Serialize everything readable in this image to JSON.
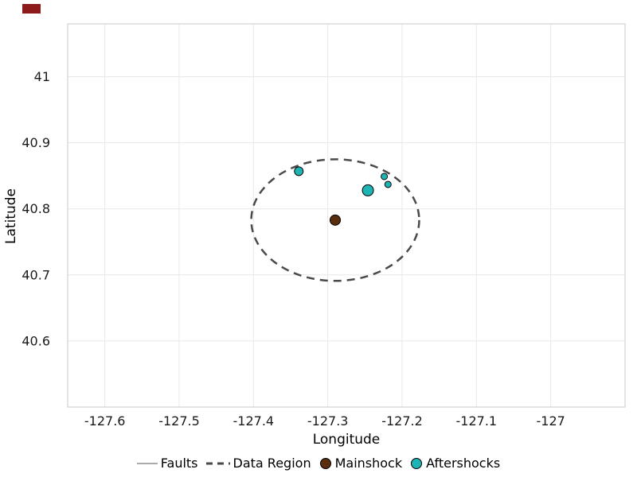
{
  "decorations": {
    "corner_swatch_color": "#8e1b1b"
  },
  "chart_data": {
    "type": "scatter",
    "title": "",
    "xlabel": "Longitude",
    "ylabel": "Latitude",
    "xlim": [
      -127.65,
      -126.9
    ],
    "ylim": [
      40.5,
      41.08
    ],
    "grid": true,
    "grid_color": "#e8e8e8",
    "axis_border_color": "#c9c9c9",
    "tick_label_color": "#1a1a1a",
    "xticks": {
      "values": [
        -127.6,
        -127.5,
        -127.4,
        -127.3,
        -127.2,
        -127.1,
        -127.0
      ],
      "labels": [
        "-127.6",
        "-127.5",
        "-127.4",
        "-127.3",
        "-127.2",
        "-127.1",
        "-127"
      ]
    },
    "yticks": {
      "values": [
        41.0,
        40.9,
        40.8,
        40.7,
        40.6
      ],
      "labels": [
        "41",
        "40.9",
        "40.8",
        "40.7",
        "40.6"
      ]
    },
    "data_region": {
      "name": "Data Region",
      "center_x": -127.29,
      "center_y": 40.783,
      "rx_deg": 0.113,
      "ry_deg": 0.092,
      "color": "#4a4a4a",
      "dash": "10 7",
      "stroke_width": 2.5
    },
    "mainshock": {
      "name": "Mainshock",
      "color": "#5a2d0d",
      "edge_color": "#000000",
      "points": [
        {
          "x": -127.29,
          "y": 40.783,
          "r": 6.5
        }
      ]
    },
    "aftershocks": {
      "name": "Aftershocks",
      "color": "#1fb4b4",
      "edge_color": "#000000",
      "points": [
        {
          "x": -127.339,
          "y": 40.857,
          "r": 5.5
        },
        {
          "x": -127.246,
          "y": 40.828,
          "r": 7
        },
        {
          "x": -127.224,
          "y": 40.849,
          "r": 4
        },
        {
          "x": -127.219,
          "y": 40.837,
          "r": 4
        }
      ]
    },
    "faults": {
      "name": "Faults",
      "color": "#ababab",
      "segments": []
    },
    "legend": [
      {
        "label": "Faults",
        "marker": "line",
        "color": "#ababab"
      },
      {
        "label": "Data Region",
        "marker": "dashed-line",
        "color": "#4a4a4a"
      },
      {
        "label": "Mainshock",
        "marker": "circle",
        "color": "#5a2d0d"
      },
      {
        "label": "Aftershocks",
        "marker": "circle",
        "color": "#1fb4b4"
      }
    ]
  }
}
